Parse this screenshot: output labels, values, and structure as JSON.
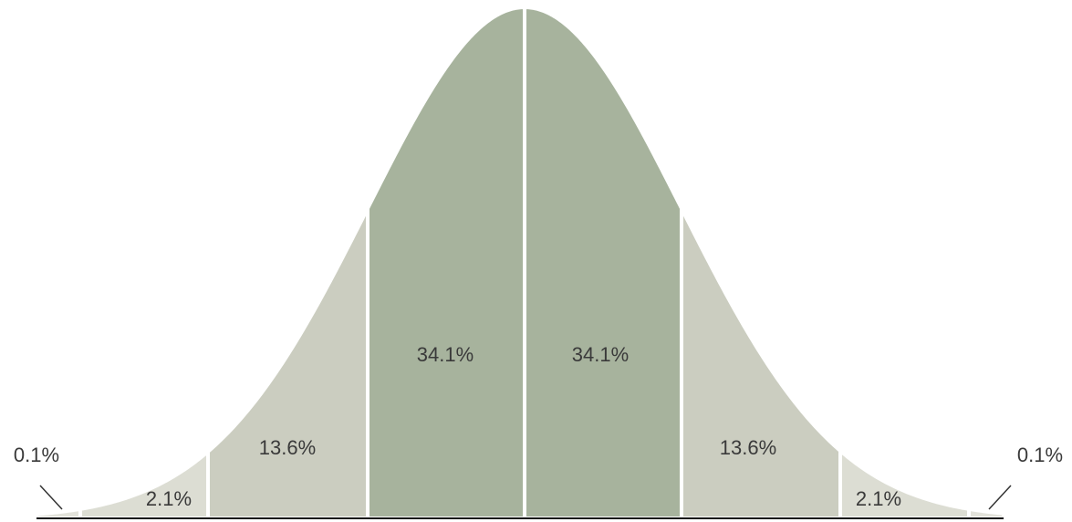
{
  "chart_data": {
    "type": "normal-distribution",
    "values": [
      0.1,
      2.1,
      13.6,
      34.1,
      34.1,
      13.6,
      2.1,
      0.1
    ],
    "value_labels": [
      "0.1%",
      "2.1%",
      "13.6%",
      "34.1%",
      "34.1%",
      "13.6%",
      "2.1%",
      "0.1%"
    ],
    "colors": [
      "#e2e2da",
      "#dcddd3",
      "#cbcdc0",
      "#a7b39d",
      "#a7b39d",
      "#cbcdc0",
      "#dcddd3",
      "#e2e2da"
    ]
  }
}
